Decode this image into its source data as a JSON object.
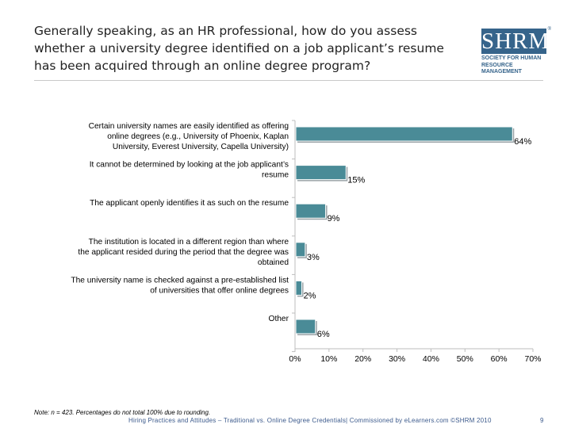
{
  "title": "Generally speaking, as an HR professional, how do you assess whether a university degree identified on a job applicant’s resume has been acquired through an online degree program?",
  "logo": {
    "letters": "SHRM",
    "reg": "®",
    "line1": "SOCIETY FOR HUMAN",
    "line2": "RESOURCE MANAGEMENT",
    "color": "#36648b"
  },
  "chart_data": {
    "type": "bar",
    "orientation": "horizontal",
    "categories": [
      "Certain university names are easily identified as offering online degrees (e.g., University of Phoenix, Kaplan University, Everest University, Capella University)",
      "It cannot be determined by looking at the job applicant’s resume",
      "The applicant openly identifies it as such on the resume",
      "The institution is located in a different region than where the applicant resided during the period that the degree was obtained",
      "The university name is checked against a pre-established list of universities that offer online degrees",
      "Other"
    ],
    "values": [
      64,
      15,
      9,
      3,
      2,
      6
    ],
    "value_labels": [
      "64%",
      "15%",
      "9%",
      "3%",
      "2%",
      "6%"
    ],
    "xlim": [
      0,
      70
    ],
    "x_ticks": [
      "0%",
      "10%",
      "20%",
      "30%",
      "40%",
      "50%",
      "60%",
      "70%"
    ],
    "bar_color": "#4a8b97",
    "grid": false
  },
  "note": "Note: n = 423. Percentages do not total 100% due to rounding.",
  "footer": "Hiring Practices and Attitudes – Traditional vs. Online Degree Credentials| Commissioned by eLearners.com ©SHRM 2010",
  "page_number": "9"
}
